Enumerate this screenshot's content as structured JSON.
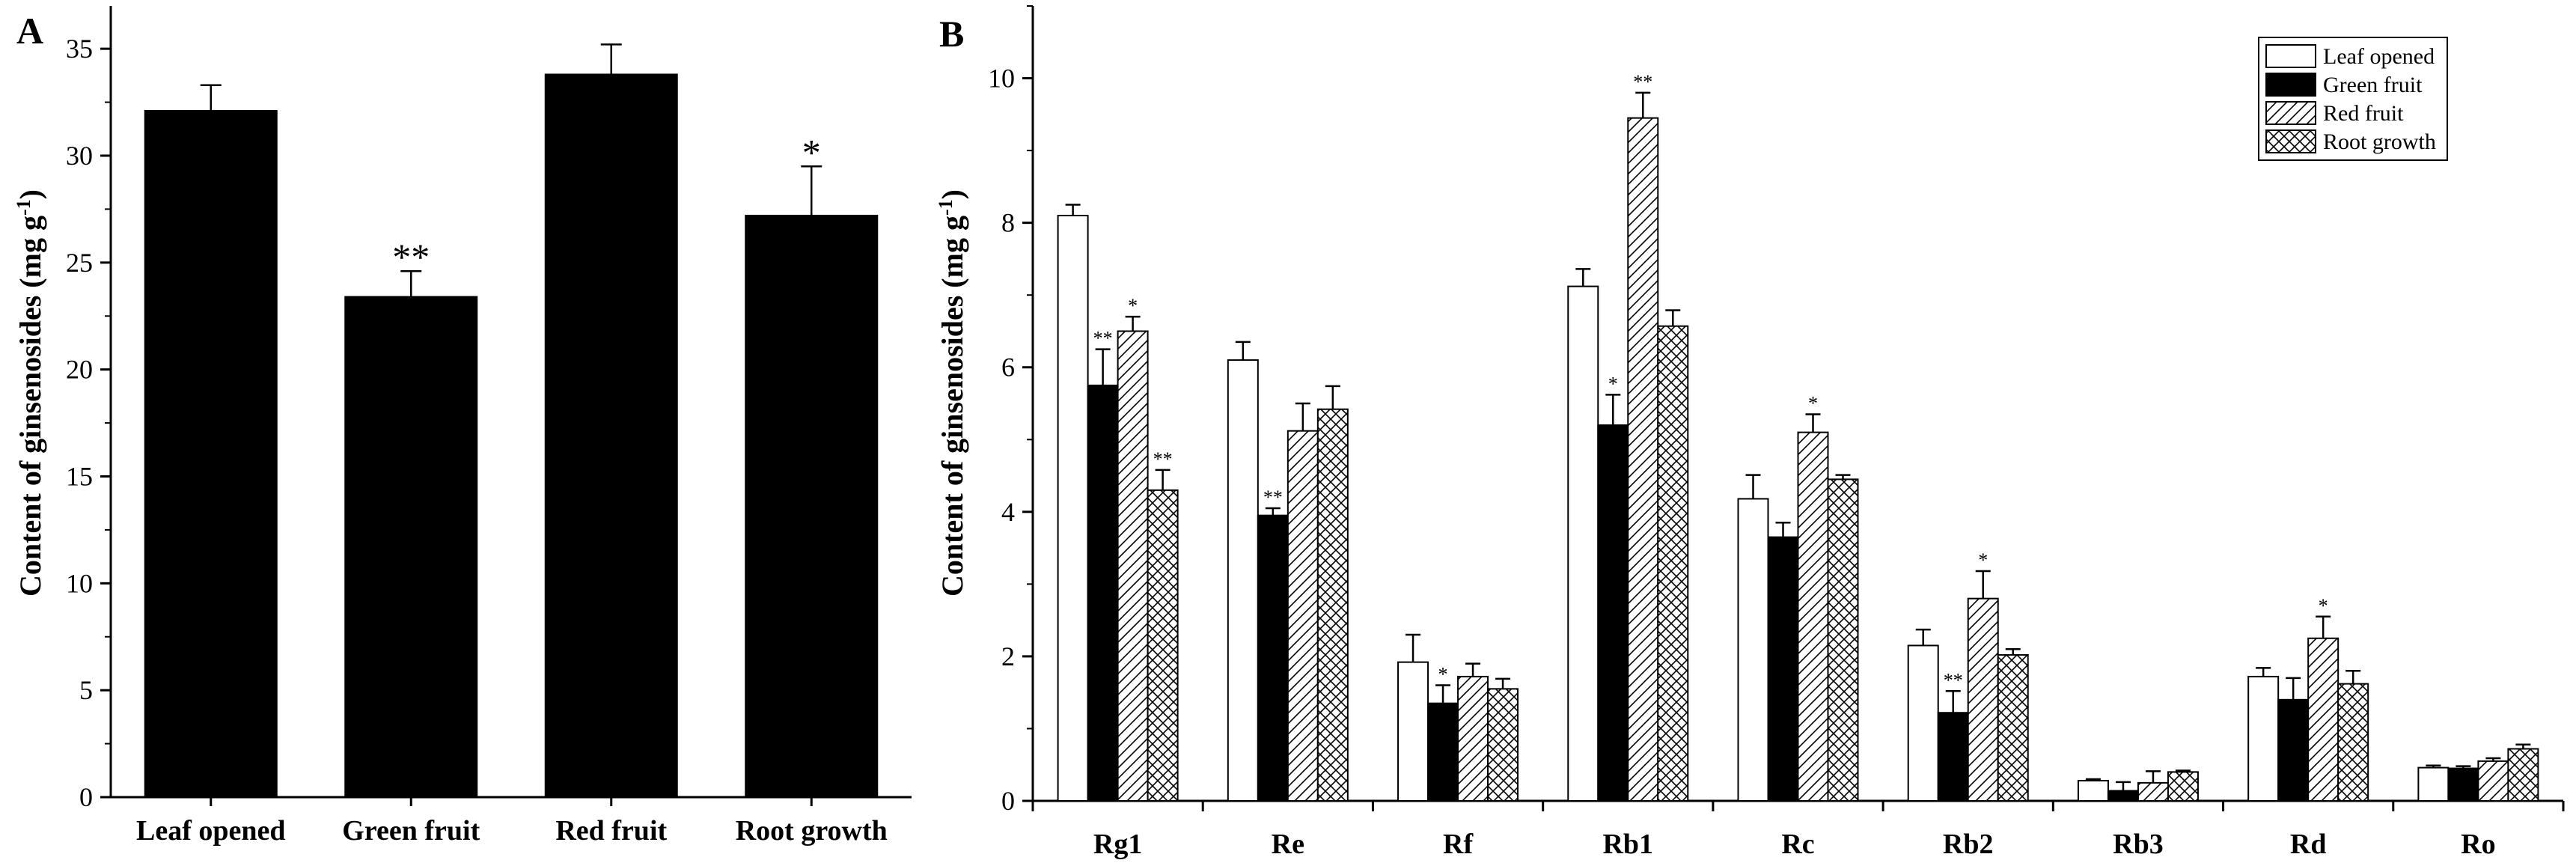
{
  "chart_data": [
    {
      "panel": "A",
      "type": "bar",
      "title": "",
      "xlabel": "",
      "ylabel": "Content of ginsenosides (mg g-1)",
      "ylabel_main": "Content of ginsenosides (mg g",
      "ylabel_sup": "-1",
      "ylabel_close": ")",
      "ylim": [
        0,
        37
      ],
      "yticks": [
        0,
        5,
        10,
        15,
        20,
        25,
        30,
        35
      ],
      "categories": [
        "Leaf opened",
        "Green fruit",
        "Red fruit",
        "Root growth"
      ],
      "values": [
        32.1,
        23.4,
        33.8,
        27.2
      ],
      "errors": [
        1.2,
        1.2,
        1.4,
        2.3
      ],
      "significance": [
        "",
        "**",
        "",
        "*"
      ],
      "fill": "#000000"
    },
    {
      "panel": "B",
      "type": "bar",
      "title": "",
      "xlabel": "",
      "ylabel": "Content of ginsenosides (mg g-1)",
      "ylabel_main": "Content of ginsenosides (mg g",
      "ylabel_sup": "-1",
      "ylabel_close": ")",
      "ylim": [
        0,
        11
      ],
      "yticks": [
        0,
        2,
        4,
        6,
        8,
        10
      ],
      "categories": [
        "Rg1",
        "Re",
        "Rf",
        "Rb1",
        "Rc",
        "Rb2",
        "Rb3",
        "Rd",
        "Ro"
      ],
      "legend_position": "top-right",
      "series": [
        {
          "name": "Leaf opened",
          "pattern": "white",
          "values": [
            8.1,
            6.1,
            1.92,
            7.12,
            4.18,
            2.15,
            0.28,
            1.72,
            0.46
          ],
          "errors": [
            0.15,
            0.25,
            0.38,
            0.24,
            0.33,
            0.22,
            0.02,
            0.12,
            0.03
          ],
          "significance": [
            "",
            "",
            "",
            "",
            "",
            "",
            "",
            "",
            ""
          ]
        },
        {
          "name": "Green fruit",
          "pattern": "black",
          "values": [
            5.75,
            3.95,
            1.35,
            5.2,
            3.65,
            1.22,
            0.14,
            1.4,
            0.45
          ],
          "errors": [
            0.5,
            0.1,
            0.25,
            0.42,
            0.2,
            0.3,
            0.12,
            0.3,
            0.03
          ],
          "significance": [
            "**",
            "**",
            "*",
            "*",
            "",
            "**",
            "",
            "",
            ""
          ]
        },
        {
          "name": "Red fruit",
          "pattern": "hatch",
          "values": [
            6.5,
            5.12,
            1.72,
            9.45,
            5.1,
            2.8,
            0.25,
            2.25,
            0.55
          ],
          "errors": [
            0.2,
            0.38,
            0.18,
            0.35,
            0.25,
            0.38,
            0.16,
            0.3,
            0.04
          ],
          "significance": [
            "*",
            "",
            "",
            "**",
            "*",
            "*",
            "",
            "*",
            ""
          ]
        },
        {
          "name": "Root growth",
          "pattern": "crosshatch",
          "values": [
            4.3,
            5.42,
            1.55,
            6.57,
            4.45,
            2.02,
            0.4,
            1.62,
            0.72
          ],
          "errors": [
            0.28,
            0.32,
            0.14,
            0.22,
            0.06,
            0.08,
            0.02,
            0.18,
            0.06
          ],
          "significance": [
            "**",
            "",
            "",
            "",
            "",
            "",
            "",
            "",
            ""
          ]
        }
      ]
    }
  ]
}
